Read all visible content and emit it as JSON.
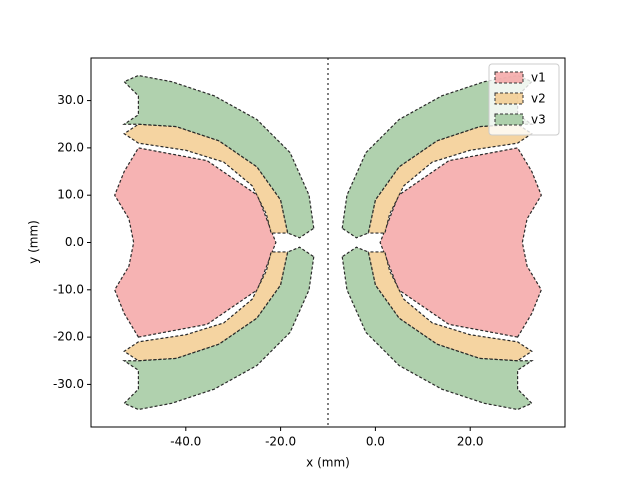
{
  "chart_data": {
    "type": "patch",
    "x_label": "x (mm)",
    "y_label": "y (mm)",
    "xlim": [
      -60,
      40
    ],
    "ylim": [
      -39,
      39
    ],
    "xticks": [
      {
        "value": -40,
        "label": "-40.0"
      },
      {
        "value": -20,
        "label": "-20.0"
      },
      {
        "value": 0,
        "label": "0.0"
      },
      {
        "value": 20,
        "label": "20.0"
      }
    ],
    "yticks": [
      {
        "value": -30,
        "label": "-30.0"
      },
      {
        "value": -20,
        "label": "-20.0"
      },
      {
        "value": -10,
        "label": "-10.0"
      },
      {
        "value": 0,
        "label": "0.0"
      },
      {
        "value": 10,
        "label": "10.0"
      },
      {
        "value": 20,
        "label": "20.0"
      },
      {
        "value": 30,
        "label": "30.0"
      }
    ],
    "vlines": [
      -10
    ],
    "legend": "upper right",
    "series": [
      {
        "name": "v1",
        "color": "#f4a0a0",
        "shapes": [
          {
            "x": [
              30,
              15.5,
              4.9,
              1,
              4.9,
              15.5,
              30,
              33,
              35,
              32,
              31,
              32,
              35,
              33
            ],
            "y": [
              -20,
              -17.3,
              -10,
              0,
              10,
              17.3,
              20,
              15,
              10,
              5,
              0,
              -5,
              -10,
              -15
            ]
          },
          {
            "x": [
              -50,
              -35.5,
              -24.9,
              -21,
              -24.9,
              -35.5,
              -50,
              -53,
              -55,
              -52,
              -51,
              -52,
              -55,
              -53
            ],
            "y": [
              -20,
              -17.3,
              -10,
              0,
              10,
              17.3,
              20,
              15,
              10,
              5,
              0,
              -5,
              -10,
              -15
            ]
          }
        ]
      },
      {
        "name": "v2",
        "color": "#f2c98a",
        "shapes": [
          {
            "x": [
              -1.5,
              0,
              5,
              13,
              22,
              30,
              33,
              30,
              20,
              12,
              6,
              3,
              2
            ],
            "y": [
              2,
              9,
              16,
              21.5,
              24.5,
              25,
              23,
              21,
              19.5,
              17,
              12,
              6,
              2
            ]
          },
          {
            "x": [
              -1.5,
              0,
              5,
              13,
              22,
              30,
              33,
              30,
              20,
              12,
              6,
              3,
              2
            ],
            "y": [
              -2,
              -9,
              -16,
              -21.5,
              -24.5,
              -25,
              -23,
              -21,
              -19.5,
              -17,
              -12,
              -6,
              -2
            ]
          },
          {
            "x": [
              -18.5,
              -20,
              -25,
              -33,
              -42,
              -50,
              -53,
              -50,
              -40,
              -32,
              -26,
              -23,
              -22
            ],
            "y": [
              2,
              9,
              16,
              21.5,
              24.5,
              25,
              23,
              21,
              19.5,
              17,
              12,
              6,
              2
            ]
          },
          {
            "x": [
              -18.5,
              -20,
              -25,
              -33,
              -42,
              -50,
              -53,
              -50,
              -40,
              -32,
              -26,
              -23,
              -22
            ],
            "y": [
              -2,
              -9,
              -16,
              -21.5,
              -24.5,
              -25,
              -23,
              -21,
              -19.5,
              -17,
              -12,
              -6,
              -2
            ]
          }
        ]
      },
      {
        "name": "v3",
        "color": "#9cc59a",
        "shapes": [
          {
            "x": [
              -7,
              -6,
              -2,
              5,
              14,
              23,
              30,
              33,
              30,
              30,
              33,
              30,
              22,
              13,
              5,
              0,
              -1.5,
              -4
            ],
            "y": [
              3,
              10,
              19,
              26,
              31,
              34,
              35.3,
              34,
              31,
              27,
              25,
              25,
              24.5,
              21.5,
              16,
              9,
              2,
              1
            ]
          },
          {
            "x": [
              -7,
              -6,
              -2,
              5,
              14,
              23,
              30,
              33,
              30,
              30,
              33,
              30,
              22,
              13,
              5,
              0,
              -1.5,
              -4
            ],
            "y": [
              -3,
              -10,
              -19,
              -26,
              -31,
              -34,
              -35.3,
              -34,
              -31,
              -27,
              -25,
              -25,
              -24.5,
              -21.5,
              -16,
              -9,
              -2,
              -1
            ]
          },
          {
            "x": [
              -13,
              -14,
              -18,
              -25,
              -34,
              -43,
              -50,
              -53,
              -50,
              -50,
              -53,
              -50,
              -42,
              -33,
              -25,
              -20,
              -18.5,
              -16
            ],
            "y": [
              3,
              10,
              19,
              26,
              31,
              34,
              35.3,
              34,
              31,
              27,
              25,
              25,
              24.5,
              21.5,
              16,
              9,
              2,
              1
            ]
          },
          {
            "x": [
              -13,
              -14,
              -18,
              -25,
              -34,
              -43,
              -50,
              -53,
              -50,
              -50,
              -53,
              -50,
              -42,
              -33,
              -25,
              -20,
              -18.5,
              -16
            ],
            "y": [
              -3,
              -10,
              -19,
              -26,
              -31,
              -34,
              -35.3,
              -34,
              -31,
              -27,
              -25,
              -25,
              -24.5,
              -21.5,
              -16,
              -9,
              -2,
              -1
            ]
          }
        ]
      }
    ]
  }
}
